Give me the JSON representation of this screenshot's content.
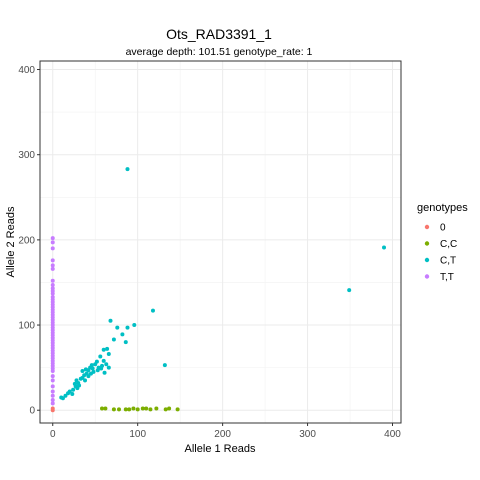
{
  "chart_data": {
    "type": "scatter",
    "title": "Ots_RAD3391_1",
    "subtitle": "average depth:  101.51  genotype_rate:  1",
    "xlabel": "Allele 1 Reads",
    "ylabel": "Allele 2 Reads",
    "xlim": [
      -15,
      410
    ],
    "ylim": [
      -15,
      410
    ],
    "x_ticks": [
      0,
      100,
      200,
      300,
      400
    ],
    "y_ticks": [
      0,
      100,
      200,
      300,
      400
    ],
    "grid": true,
    "legend": {
      "title": "genotypes",
      "placement": "right"
    },
    "series": [
      {
        "name": "0",
        "color": "#F8766D",
        "points": [
          [
            0,
            0
          ],
          [
            0,
            2
          ]
        ]
      },
      {
        "name": "C,C",
        "color": "#7CAE00",
        "points": [
          [
            58,
            2
          ],
          [
            62,
            2
          ],
          [
            72,
            1
          ],
          [
            78,
            1
          ],
          [
            86,
            1
          ],
          [
            90,
            1
          ],
          [
            95,
            2
          ],
          [
            100,
            1
          ],
          [
            106,
            2
          ],
          [
            110,
            2
          ],
          [
            115,
            1
          ],
          [
            122,
            2
          ],
          [
            133,
            1
          ],
          [
            137,
            2
          ],
          [
            147,
            1
          ]
        ]
      },
      {
        "name": "C,T",
        "color": "#00BFC4",
        "points": [
          [
            88,
            283
          ],
          [
            390,
            191
          ],
          [
            349,
            141
          ],
          [
            118,
            117
          ],
          [
            132,
            53
          ],
          [
            68,
            105
          ],
          [
            96,
            100
          ],
          [
            88,
            97
          ],
          [
            76,
            97
          ],
          [
            82,
            89
          ],
          [
            86,
            80
          ],
          [
            72,
            83
          ],
          [
            60,
            71
          ],
          [
            64,
            72
          ],
          [
            66,
            66
          ],
          [
            56,
            63
          ],
          [
            60,
            58
          ],
          [
            63,
            54
          ],
          [
            66,
            50
          ],
          [
            58,
            52
          ],
          [
            52,
            57
          ],
          [
            50,
            54
          ],
          [
            54,
            50
          ],
          [
            46,
            53
          ],
          [
            44,
            50
          ],
          [
            42,
            47
          ],
          [
            48,
            45
          ],
          [
            40,
            43
          ],
          [
            37,
            41
          ],
          [
            35,
            38
          ],
          [
            38,
            35
          ],
          [
            33,
            37
          ],
          [
            30,
            32
          ],
          [
            28,
            35
          ],
          [
            26,
            31
          ],
          [
            31,
            29
          ],
          [
            29,
            26
          ],
          [
            27,
            28
          ],
          [
            24,
            24
          ],
          [
            20,
            22
          ],
          [
            23,
            19
          ],
          [
            18,
            20
          ],
          [
            15,
            17
          ],
          [
            12,
            14
          ],
          [
            10,
            15
          ],
          [
            35,
            46
          ],
          [
            39,
            48
          ],
          [
            45,
            43
          ],
          [
            47,
            49
          ],
          [
            53,
            47
          ],
          [
            57,
            49
          ],
          [
            61,
            44
          ],
          [
            42,
            40
          ]
        ]
      },
      {
        "name": "T,T",
        "color": "#C77CFF",
        "points": [
          [
            0,
            202
          ],
          [
            0,
            197
          ],
          [
            0,
            190
          ],
          [
            0,
            176
          ],
          [
            0,
            170
          ],
          [
            0,
            166
          ],
          [
            0,
            152
          ],
          [
            0,
            147
          ],
          [
            0,
            143
          ],
          [
            0,
            140
          ],
          [
            0,
            137
          ],
          [
            0,
            133
          ],
          [
            0,
            130
          ],
          [
            0,
            127
          ],
          [
            0,
            124
          ],
          [
            0,
            121
          ],
          [
            0,
            118
          ],
          [
            0,
            115
          ],
          [
            0,
            112
          ],
          [
            0,
            109
          ],
          [
            0,
            106
          ],
          [
            0,
            103
          ],
          [
            0,
            100
          ],
          [
            0,
            97
          ],
          [
            0,
            94
          ],
          [
            0,
            91
          ],
          [
            0,
            88
          ],
          [
            0,
            85
          ],
          [
            0,
            82
          ],
          [
            0,
            79
          ],
          [
            0,
            76
          ],
          [
            0,
            73
          ],
          [
            0,
            70
          ],
          [
            0,
            67
          ],
          [
            0,
            64
          ],
          [
            0,
            61
          ],
          [
            0,
            58
          ],
          [
            0,
            55
          ],
          [
            0,
            52
          ],
          [
            0,
            49
          ],
          [
            0,
            46
          ],
          [
            0,
            40
          ],
          [
            0,
            35
          ],
          [
            0,
            28
          ],
          [
            0,
            22
          ],
          [
            0,
            17
          ],
          [
            0,
            12
          ],
          [
            0,
            8
          ]
        ]
      }
    ]
  }
}
